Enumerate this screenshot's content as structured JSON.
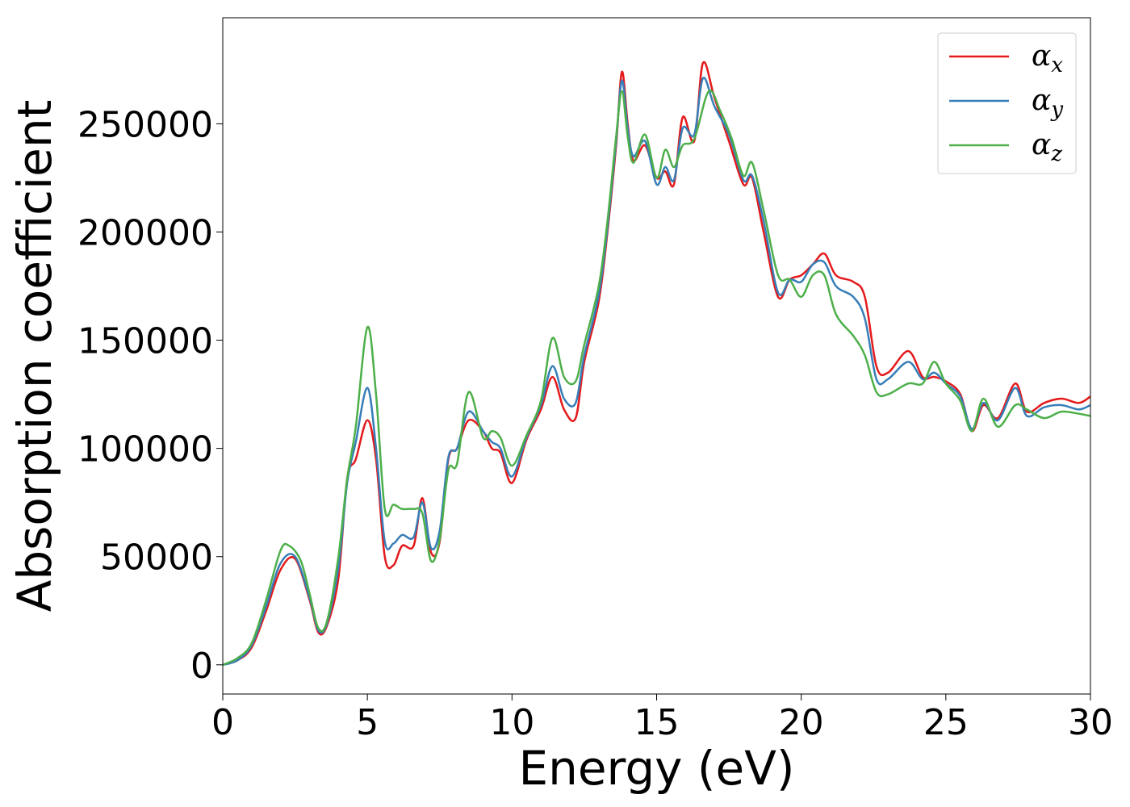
{
  "chart_data": {
    "type": "line",
    "xlabel": "Energy (eV)",
    "ylabel": "Absorption coefficient",
    "xlim": [
      0,
      30
    ],
    "ylim": [
      -13500,
      299000
    ],
    "xticks": [
      0,
      5,
      10,
      15,
      20,
      25,
      30
    ],
    "xtick_labels": [
      "0",
      "5",
      "10",
      "15",
      "20",
      "25",
      "30"
    ],
    "yticks": [
      0,
      50000,
      100000,
      150000,
      200000,
      250000
    ],
    "ytick_labels": [
      "0",
      "50000",
      "100000",
      "150000",
      "200000",
      "250000"
    ],
    "grid": false,
    "legend_position": "top-right",
    "series": [
      {
        "name": "α_x",
        "symbol": "α",
        "subscript": "x",
        "color": "#e41a1c",
        "points": [
          [
            0,
            0
          ],
          [
            0.5,
            2000
          ],
          [
            1,
            8000
          ],
          [
            1.5,
            25000
          ],
          [
            2,
            44000
          ],
          [
            2.5,
            49000
          ],
          [
            3,
            30000
          ],
          [
            3.3,
            15000
          ],
          [
            3.6,
            18000
          ],
          [
            4,
            40000
          ],
          [
            4.3,
            86000
          ],
          [
            4.6,
            95000
          ],
          [
            5,
            113000
          ],
          [
            5.3,
            95000
          ],
          [
            5.6,
            50000
          ],
          [
            5.9,
            46000
          ],
          [
            6.2,
            55000
          ],
          [
            6.6,
            55000
          ],
          [
            6.9,
            77000
          ],
          [
            7.2,
            52000
          ],
          [
            7.5,
            57000
          ],
          [
            7.8,
            95000
          ],
          [
            8.1,
            100000
          ],
          [
            8.5,
            113000
          ],
          [
            9,
            108000
          ],
          [
            9.3,
            100000
          ],
          [
            9.6,
            98000
          ],
          [
            10,
            84000
          ],
          [
            10.5,
            104000
          ],
          [
            11,
            118000
          ],
          [
            11.4,
            133000
          ],
          [
            11.8,
            118000
          ],
          [
            12.2,
            114000
          ],
          [
            12.5,
            140000
          ],
          [
            13,
            168000
          ],
          [
            13.3,
            200000
          ],
          [
            13.6,
            240000
          ],
          [
            13.8,
            274000
          ],
          [
            14,
            250000
          ],
          [
            14.2,
            233000
          ],
          [
            14.6,
            240000
          ],
          [
            15,
            225000
          ],
          [
            15.3,
            228000
          ],
          [
            15.6,
            222000
          ],
          [
            15.9,
            253000
          ],
          [
            16.3,
            242000
          ],
          [
            16.6,
            278000
          ],
          [
            17,
            262000
          ],
          [
            17.5,
            242000
          ],
          [
            18,
            222000
          ],
          [
            18.3,
            225000
          ],
          [
            18.7,
            200000
          ],
          [
            19.2,
            170000
          ],
          [
            19.6,
            178000
          ],
          [
            20,
            180000
          ],
          [
            20.4,
            185000
          ],
          [
            20.8,
            190000
          ],
          [
            21.2,
            180000
          ],
          [
            21.8,
            177000
          ],
          [
            22.2,
            170000
          ],
          [
            22.6,
            138000
          ],
          [
            23,
            135000
          ],
          [
            23.7,
            145000
          ],
          [
            24.2,
            133000
          ],
          [
            24.6,
            133000
          ],
          [
            25,
            131000
          ],
          [
            25.5,
            125000
          ],
          [
            25.9,
            108000
          ],
          [
            26.3,
            120000
          ],
          [
            26.8,
            114000
          ],
          [
            27.4,
            130000
          ],
          [
            27.8,
            117000
          ],
          [
            28.4,
            121000
          ],
          [
            29,
            123000
          ],
          [
            29.6,
            121000
          ],
          [
            30,
            124000
          ]
        ]
      },
      {
        "name": "α_y",
        "symbol": "α",
        "subscript": "y",
        "color": "#377eb8",
        "points": [
          [
            0,
            0
          ],
          [
            0.5,
            2000
          ],
          [
            1,
            9000
          ],
          [
            1.5,
            27000
          ],
          [
            2,
            47000
          ],
          [
            2.5,
            50000
          ],
          [
            3,
            31000
          ],
          [
            3.3,
            16000
          ],
          [
            3.6,
            19000
          ],
          [
            4,
            45000
          ],
          [
            4.3,
            84000
          ],
          [
            4.6,
            103000
          ],
          [
            5,
            128000
          ],
          [
            5.3,
            100000
          ],
          [
            5.6,
            57000
          ],
          [
            5.9,
            56000
          ],
          [
            6.2,
            60000
          ],
          [
            6.6,
            59000
          ],
          [
            6.9,
            75000
          ],
          [
            7.2,
            54000
          ],
          [
            7.5,
            62000
          ],
          [
            7.8,
            96000
          ],
          [
            8.1,
            100000
          ],
          [
            8.5,
            117000
          ],
          [
            9,
            108000
          ],
          [
            9.3,
            103000
          ],
          [
            9.6,
            100000
          ],
          [
            10,
            87000
          ],
          [
            10.5,
            105000
          ],
          [
            11,
            120000
          ],
          [
            11.4,
            138000
          ],
          [
            11.8,
            123000
          ],
          [
            12.2,
            121000
          ],
          [
            12.5,
            143000
          ],
          [
            13,
            171000
          ],
          [
            13.3,
            202000
          ],
          [
            13.6,
            242000
          ],
          [
            13.8,
            270000
          ],
          [
            14,
            248000
          ],
          [
            14.2,
            235000
          ],
          [
            14.6,
            242000
          ],
          [
            15,
            222000
          ],
          [
            15.3,
            230000
          ],
          [
            15.6,
            224000
          ],
          [
            15.9,
            248000
          ],
          [
            16.3,
            245000
          ],
          [
            16.6,
            271000
          ],
          [
            17,
            258000
          ],
          [
            17.5,
            245000
          ],
          [
            18,
            224000
          ],
          [
            18.3,
            226000
          ],
          [
            18.7,
            205000
          ],
          [
            19.2,
            172000
          ],
          [
            19.6,
            178000
          ],
          [
            20,
            177000
          ],
          [
            20.4,
            185000
          ],
          [
            20.8,
            186000
          ],
          [
            21.2,
            175000
          ],
          [
            21.8,
            170000
          ],
          [
            22.2,
            160000
          ],
          [
            22.6,
            132000
          ],
          [
            23,
            132000
          ],
          [
            23.7,
            140000
          ],
          [
            24.2,
            132000
          ],
          [
            24.6,
            135000
          ],
          [
            25,
            130000
          ],
          [
            25.5,
            124000
          ],
          [
            25.9,
            109000
          ],
          [
            26.3,
            121000
          ],
          [
            26.8,
            113000
          ],
          [
            27.4,
            128000
          ],
          [
            27.8,
            115000
          ],
          [
            28.4,
            119000
          ],
          [
            29,
            120000
          ],
          [
            29.6,
            118000
          ],
          [
            30,
            120000
          ]
        ]
      },
      {
        "name": "α_z",
        "symbol": "α",
        "subscript": "z",
        "color": "#4daf4a",
        "points": [
          [
            0,
            0
          ],
          [
            0.5,
            3000
          ],
          [
            1,
            10000
          ],
          [
            1.5,
            30000
          ],
          [
            2,
            53000
          ],
          [
            2.3,
            55000
          ],
          [
            2.7,
            48000
          ],
          [
            3,
            33000
          ],
          [
            3.3,
            17000
          ],
          [
            3.6,
            20000
          ],
          [
            4,
            50000
          ],
          [
            4.3,
            86000
          ],
          [
            4.6,
            110000
          ],
          [
            5,
            156000
          ],
          [
            5.3,
            125000
          ],
          [
            5.6,
            72000
          ],
          [
            5.9,
            74000
          ],
          [
            6.2,
            72000
          ],
          [
            6.6,
            72000
          ],
          [
            6.9,
            70000
          ],
          [
            7.2,
            48000
          ],
          [
            7.5,
            58000
          ],
          [
            7.8,
            90000
          ],
          [
            8.1,
            93000
          ],
          [
            8.5,
            126000
          ],
          [
            9,
            105000
          ],
          [
            9.3,
            108000
          ],
          [
            9.6,
            105000
          ],
          [
            10,
            92000
          ],
          [
            10.5,
            106000
          ],
          [
            11,
            122000
          ],
          [
            11.4,
            151000
          ],
          [
            11.8,
            133000
          ],
          [
            12.2,
            131000
          ],
          [
            12.5,
            148000
          ],
          [
            13,
            175000
          ],
          [
            13.3,
            205000
          ],
          [
            13.6,
            244000
          ],
          [
            13.8,
            265000
          ],
          [
            14,
            244000
          ],
          [
            14.2,
            232000
          ],
          [
            14.6,
            245000
          ],
          [
            15,
            225000
          ],
          [
            15.3,
            238000
          ],
          [
            15.6,
            230000
          ],
          [
            15.9,
            240000
          ],
          [
            16.3,
            243000
          ],
          [
            16.8,
            265000
          ],
          [
            17.2,
            256000
          ],
          [
            17.6,
            243000
          ],
          [
            18,
            226000
          ],
          [
            18.3,
            232000
          ],
          [
            18.7,
            210000
          ],
          [
            19.2,
            180000
          ],
          [
            19.6,
            178000
          ],
          [
            20,
            170000
          ],
          [
            20.4,
            180000
          ],
          [
            20.8,
            180000
          ],
          [
            21.2,
            162000
          ],
          [
            21.8,
            152000
          ],
          [
            22.2,
            143000
          ],
          [
            22.6,
            126000
          ],
          [
            23,
            125000
          ],
          [
            23.7,
            130000
          ],
          [
            24.2,
            130000
          ],
          [
            24.6,
            140000
          ],
          [
            25,
            130000
          ],
          [
            25.5,
            122000
          ],
          [
            25.9,
            108000
          ],
          [
            26.3,
            123000
          ],
          [
            26.8,
            110000
          ],
          [
            27.4,
            120000
          ],
          [
            27.8,
            118000
          ],
          [
            28.4,
            114000
          ],
          [
            29,
            117000
          ],
          [
            29.6,
            116000
          ],
          [
            30,
            115000
          ]
        ]
      }
    ]
  }
}
